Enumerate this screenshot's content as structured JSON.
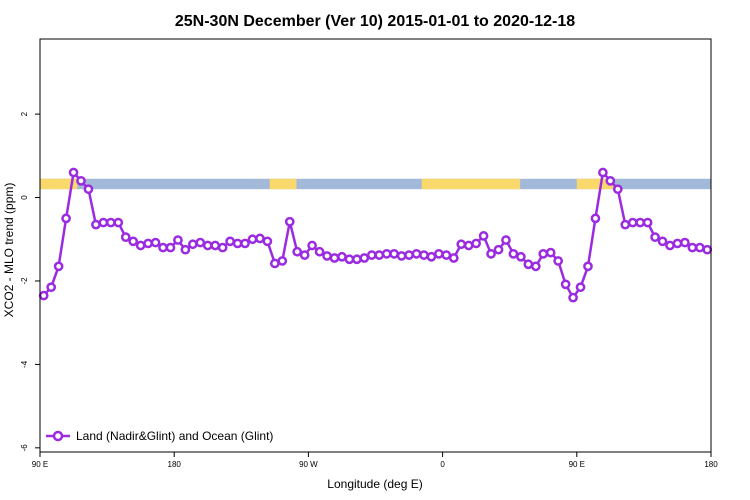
{
  "chart_data": {
    "type": "line",
    "title": "25N-30N December (Ver 10)   2015-01-01 to 2020-12-18",
    "xlabel": "Longitude (deg E)",
    "ylabel": "XCO2 - MLO trend (ppm)",
    "xlim": [
      90,
      540
    ],
    "ylim": [
      -6.1,
      3.8
    ],
    "x_ticks": [
      {
        "value": 90,
        "label": "90 E"
      },
      {
        "value": 180,
        "label": "180"
      },
      {
        "value": 270,
        "label": "90 W"
      },
      {
        "value": 360,
        "label": "0"
      },
      {
        "value": 450,
        "label": "90 E"
      },
      {
        "value": 540,
        "label": "180"
      }
    ],
    "y_ticks": [
      {
        "value": 2,
        "label": "2"
      },
      {
        "value": 0,
        "label": "0"
      },
      {
        "value": -2,
        "label": "-2"
      },
      {
        "value": -4,
        "label": "-4"
      },
      {
        "value": -6,
        "label": "-6"
      }
    ],
    "surface_band": {
      "y_range": [
        0.2,
        0.45
      ],
      "ocean_color": "#a3b9d9",
      "land_color": "#f9d86c",
      "land_segments": [
        [
          90,
          115
        ],
        [
          244,
          262
        ],
        [
          346,
          412
        ],
        [
          450,
          475
        ]
      ]
    },
    "series": [
      {
        "name": "Land (Nadir&Glint) and Ocean (Glint)",
        "color": "#9b2be0",
        "x": [
          92.5,
          97.5,
          102.5,
          107.5,
          112.5,
          117.5,
          122.5,
          127.5,
          132.5,
          137.5,
          142.5,
          147.5,
          152.5,
          157.5,
          162.5,
          167.5,
          172.5,
          177.5,
          182.5,
          187.5,
          192.5,
          197.5,
          202.5,
          207.5,
          212.5,
          217.5,
          222.5,
          227.5,
          232.5,
          237.5,
          242.5,
          247.5,
          252.5,
          257.5,
          262.5,
          267.5,
          272.5,
          277.5,
          282.5,
          287.5,
          292.5,
          297.5,
          302.5,
          307.5,
          312.5,
          317.5,
          322.5,
          327.5,
          332.5,
          337.5,
          342.5,
          347.5,
          352.5,
          357.5,
          362.5,
          367.5,
          372.5,
          377.5,
          382.5,
          387.5,
          392.5,
          397.5,
          402.5,
          407.5,
          412.5,
          417.5,
          422.5,
          427.5,
          432.5,
          437.5,
          442.5,
          447.5,
          452.5,
          457.5,
          462.5,
          467.5,
          472.5,
          477.5,
          482.5,
          487.5,
          492.5,
          497.5,
          502.5,
          507.5,
          512.5,
          517.5,
          522.5,
          527.5,
          532.5,
          537.5
        ],
        "y": [
          -2.35,
          -2.15,
          -1.65,
          -0.5,
          0.6,
          0.4,
          0.2,
          -0.65,
          -0.6,
          -0.6,
          -0.6,
          -0.95,
          -1.05,
          -1.15,
          -1.1,
          -1.08,
          -1.2,
          -1.2,
          -1.02,
          -1.25,
          -1.12,
          -1.08,
          -1.15,
          -1.15,
          -1.2,
          -1.05,
          -1.1,
          -1.1,
          -1.0,
          -0.98,
          -1.05,
          -1.58,
          -1.52,
          -0.58,
          -1.3,
          -1.38,
          -1.15,
          -1.3,
          -1.4,
          -1.45,
          -1.42,
          -1.48,
          -1.48,
          -1.45,
          -1.38,
          -1.38,
          -1.35,
          -1.35,
          -1.4,
          -1.38,
          -1.35,
          -1.38,
          -1.42,
          -1.35,
          -1.38,
          -1.45,
          -1.12,
          -1.15,
          -1.1,
          -0.92,
          -1.35,
          -1.25,
          -1.02,
          -1.35,
          -1.42,
          -1.6,
          -1.65,
          -1.35,
          -1.32,
          -1.52,
          -2.08,
          -2.4,
          -2.15,
          -1.65,
          -0.5,
          0.6,
          0.4,
          0.2,
          -0.65,
          -0.6,
          -0.6,
          -0.6,
          -0.95,
          -1.05,
          -1.15,
          -1.1,
          -1.08,
          -1.2,
          -1.2,
          -1.25
        ]
      }
    ],
    "legend": {
      "position": "bottom-left"
    }
  }
}
